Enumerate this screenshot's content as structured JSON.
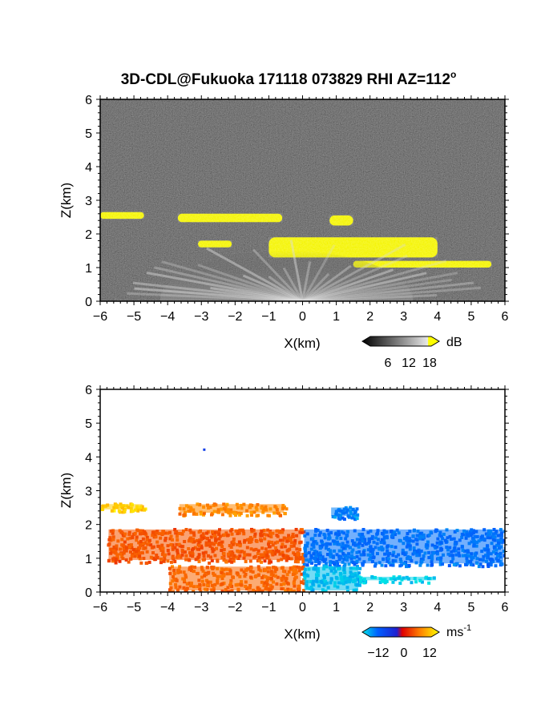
{
  "chart_data": {
    "title": "3D-CDL@Fukuoka 171118 073829 RHI AZ=112",
    "title_superscript": "o",
    "panels": [
      {
        "type": "heatmap",
        "quantity": "reflectivity",
        "xlabel": "X(km)",
        "ylabel": "Z(km)",
        "xlim": [
          -6,
          6
        ],
        "ylim": [
          0,
          6
        ],
        "xticks": [
          "-6",
          "-5",
          "-4",
          "-3",
          "-2",
          "-1",
          "0",
          "1",
          "2",
          "3",
          "4",
          "5",
          "6"
        ],
        "yticks": [
          "0",
          "1",
          "2",
          "3",
          "4",
          "5",
          "6"
        ],
        "background": "noise (black/gray)",
        "colorbar": {
          "unit": "dB",
          "ticks": [
            "6",
            "12",
            "18"
          ],
          "range": [
            0,
            20
          ],
          "colormap": "grayscale to yellow"
        },
        "features": [
          {
            "name": "upper-layer-left",
            "x": [
              -6,
              -4.7
            ],
            "z": [
              2.45,
              2.65
            ],
            "level": "high"
          },
          {
            "name": "upper-layer-mid",
            "x": [
              -3.7,
              -0.6
            ],
            "z": [
              2.35,
              2.6
            ],
            "level": "high"
          },
          {
            "name": "upper-cell",
            "x": [
              0.8,
              1.5
            ],
            "z": [
              2.25,
              2.55
            ],
            "level": "high"
          },
          {
            "name": "mid-layer",
            "x": [
              -1,
              4
            ],
            "z": [
              1.3,
              1.9
            ],
            "level": "high"
          },
          {
            "name": "small-blob",
            "x": [
              -3.1,
              -2.1
            ],
            "z": [
              1.6,
              1.8
            ],
            "level": "high"
          },
          {
            "name": "low-strip",
            "x": [
              1.5,
              5.6
            ],
            "z": [
              1.0,
              1.2
            ],
            "level": "high"
          },
          {
            "name": "near-field-clutter",
            "x": [
              -4,
              3.5
            ],
            "z": [
              0,
              1.5
            ],
            "level": "moderate"
          }
        ]
      },
      {
        "type": "heatmap",
        "quantity": "doppler-velocity",
        "xlabel": "X(km)",
        "ylabel": "Z(km)",
        "xlim": [
          -6,
          6
        ],
        "ylim": [
          0,
          6
        ],
        "xticks": [
          "-6",
          "-5",
          "-4",
          "-3",
          "-2",
          "-1",
          "0",
          "1",
          "2",
          "3",
          "4",
          "5",
          "6"
        ],
        "yticks": [
          "0",
          "1",
          "2",
          "3",
          "4",
          "5",
          "6"
        ],
        "background": "white",
        "colorbar": {
          "unit": "ms",
          "unit_superscript": "-1",
          "ticks": [
            "−12",
            "0",
            "12"
          ],
          "range": [
            -15,
            15
          ],
          "colormap": "blue-cyan (negative) to red-yellow (positive)"
        },
        "features": [
          {
            "name": "upper-layer-left",
            "x": [
              -6,
              -4.7
            ],
            "z": [
              2.4,
              2.65
            ],
            "velocity": 12
          },
          {
            "name": "upper-layer-mid",
            "x": [
              -3.7,
              -0.5
            ],
            "z": [
              2.3,
              2.65
            ],
            "velocity": 8
          },
          {
            "name": "upper-cell",
            "x": [
              0.8,
              1.6
            ],
            "z": [
              2.2,
              2.55
            ],
            "velocity": -10
          },
          {
            "name": "left-mid-layer",
            "x": [
              -5.8,
              0
            ],
            "z": [
              0.9,
              1.9
            ],
            "velocity": 5
          },
          {
            "name": "right-mid-layer",
            "x": [
              0,
              6
            ],
            "z": [
              0.8,
              1.9
            ],
            "velocity": -9
          },
          {
            "name": "low-right-strip",
            "x": [
              1,
              4
            ],
            "z": [
              0.3,
              0.5
            ],
            "velocity": -14
          },
          {
            "name": "near-surface",
            "x": [
              -4,
              0
            ],
            "z": [
              0,
              0.8
            ],
            "velocity": 6
          },
          {
            "name": "near-surface-right",
            "x": [
              0,
              1.7
            ],
            "z": [
              0,
              0.8
            ],
            "velocity": -13
          },
          {
            "name": "isolated-point",
            "x": [
              -2.95,
              -2.9
            ],
            "z": [
              4.2,
              4.25
            ],
            "velocity": -4
          }
        ]
      }
    ]
  }
}
